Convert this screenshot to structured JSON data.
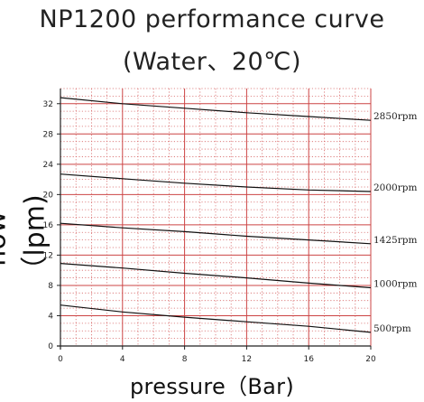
{
  "chart_data": {
    "type": "line",
    "title": "NP1200 performance curve",
    "subtitle": "(Water、20℃)",
    "xlabel": "pressure（Bar)",
    "ylabel": "flow（lpm)",
    "xlim": [
      0,
      20
    ],
    "ylim": [
      0,
      34
    ],
    "x_ticks": [
      "0",
      "4",
      "8",
      "12",
      "16",
      "20"
    ],
    "y_ticks": [
      "0",
      "4",
      "8",
      "12",
      "16",
      "20",
      "24",
      "28",
      "32"
    ],
    "grid": true,
    "series": [
      {
        "name": "2850rpm",
        "x": [
          0,
          4,
          8,
          12,
          16,
          20
        ],
        "y": [
          32.8,
          32.0,
          31.4,
          30.8,
          30.3,
          29.8
        ]
      },
      {
        "name": "2000rpm",
        "x": [
          0,
          4,
          8,
          12,
          16,
          20
        ],
        "y": [
          22.7,
          22.1,
          21.5,
          21.0,
          20.6,
          20.4
        ]
      },
      {
        "name": "1425rpm",
        "x": [
          0,
          4,
          8,
          12,
          16,
          20
        ],
        "y": [
          16.2,
          15.6,
          15.1,
          14.5,
          14.0,
          13.5
        ]
      },
      {
        "name": "1000rpm",
        "x": [
          0,
          4,
          8,
          12,
          16,
          20
        ],
        "y": [
          10.9,
          10.3,
          9.6,
          9.0,
          8.3,
          7.7
        ]
      },
      {
        "name": "500rpm",
        "x": [
          0,
          4,
          8,
          12,
          16,
          20
        ],
        "y": [
          5.4,
          4.5,
          3.8,
          3.2,
          2.6,
          1.8
        ]
      }
    ]
  }
}
